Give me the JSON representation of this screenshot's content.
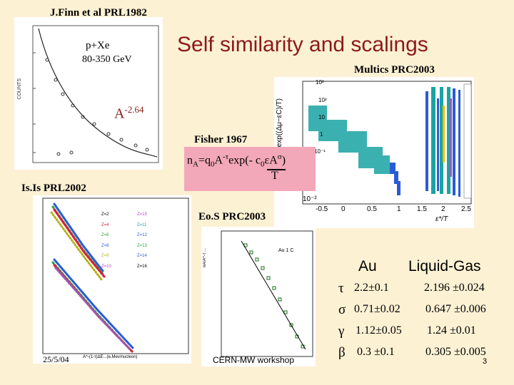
{
  "title": "Self similarity and scalings",
  "refs": {
    "finn": "J.Finn et al PRL1982",
    "multics": "Multics PRC2003",
    "isis": "Is.Is PRL2002",
    "eos": "Eo.S PRC2003",
    "fisher": "Fisher 1967"
  },
  "finn_plot": {
    "label_reaction": "p+Xe",
    "label_energy": "80-350 GeV",
    "power_base": "A",
    "power_exp": "-2.64",
    "ylabel": "COUNTS"
  },
  "formula": {
    "n": "n",
    "sub_A": "A",
    "eq": "=q",
    "sub_0": "0",
    "A": "A",
    "exp_tau": "-τ",
    "exp_text": "exp(- c",
    "sub_c0": "0",
    "eps": "εA",
    "exp_sigma": "σ",
    "close": ")",
    "denominator": "T"
  },
  "multics_plot": {
    "xlabel": "ε*/T",
    "x_ticks": [
      "-0.5",
      "0",
      "0.5",
      "1",
      "1.5",
      "2",
      "2.5"
    ],
    "y_ticks": [
      "10³",
      "10²",
      "10",
      "1",
      "10⁻¹",
      "10⁻²"
    ]
  },
  "isis_plot": {
    "legend": [
      "Z=2",
      "Z=15",
      "Z=4",
      "Z=11",
      "Z=6",
      "Z=12",
      "Z=8",
      "Z=13",
      "Z=9",
      "Z=14",
      "Z=10",
      "Z=16"
    ],
    "xlabel": "A^-(1-τ)ΔE...(e,Mev/nucleon)"
  },
  "eos_plot": {
    "tag": "Au 1 C",
    "ylabel": "nA/A^-τ ..."
  },
  "table": {
    "header_left": "Au",
    "header_right": "Liquid-Gas",
    "rows": [
      {
        "symbol": "τ",
        "au": "2.2±0.1",
        "lg": "2.196 ±0.024"
      },
      {
        "symbol": "σ",
        "au": "0.71±0.02",
        "lg": "0.647 ±0.006"
      },
      {
        "symbol": "γ",
        "au": "1.12±0.05",
        "lg": "1.24 ±0.01"
      },
      {
        "symbol": "β",
        "au": "0.3 ±0.1",
        "lg": "0.305 ±0.005"
      }
    ]
  },
  "footer": {
    "date": "25/5/04",
    "workshop": "CERN-MW workshop",
    "page": "3"
  },
  "colors": {
    "title": "#8b1a1a",
    "background": "#fdf1d4",
    "formula_box": "#f2a8b8"
  }
}
